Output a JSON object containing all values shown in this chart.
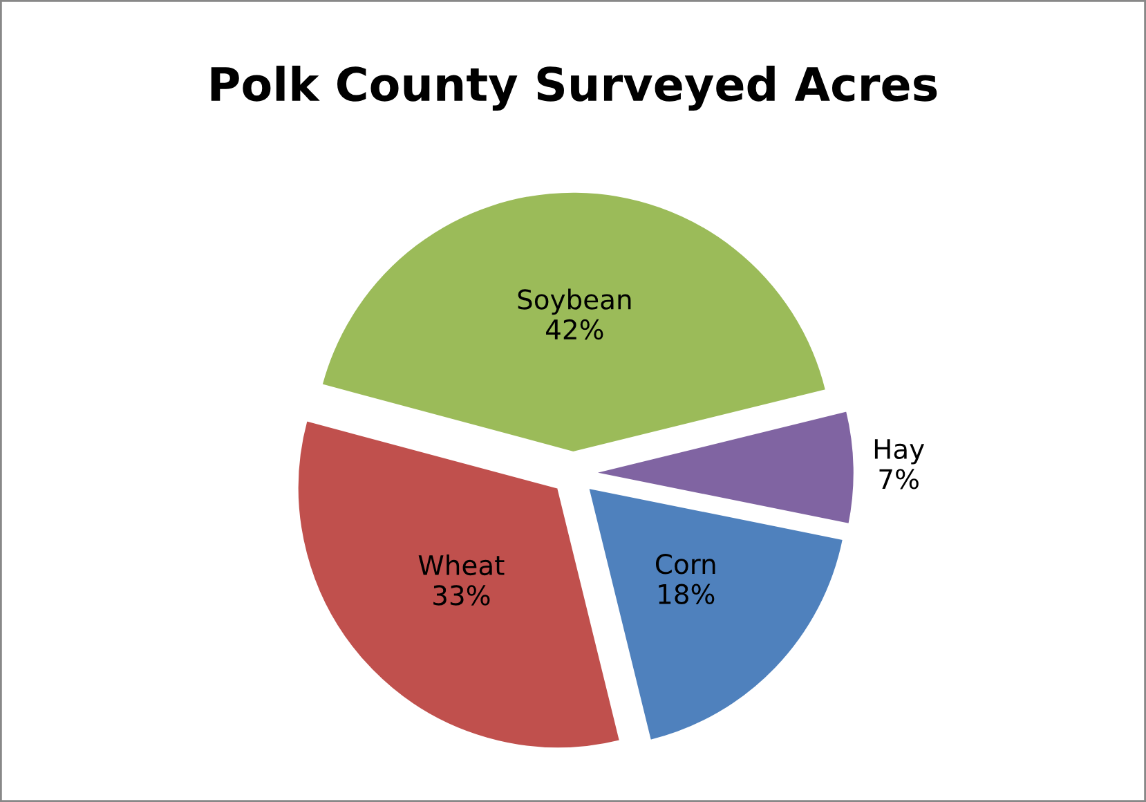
{
  "chart_data": {
    "type": "pie",
    "title": "Polk County Surveyed Acres",
    "categories": [
      "Soybean",
      "Hay",
      "Corn",
      "Wheat"
    ],
    "values": [
      42,
      7,
      18,
      33
    ],
    "colors": [
      "#9bbb59",
      "#8064a2",
      "#4f81bd",
      "#c0504d"
    ],
    "value_labels": [
      "42%",
      "7%",
      "18%",
      "33%"
    ],
    "legend": false
  }
}
